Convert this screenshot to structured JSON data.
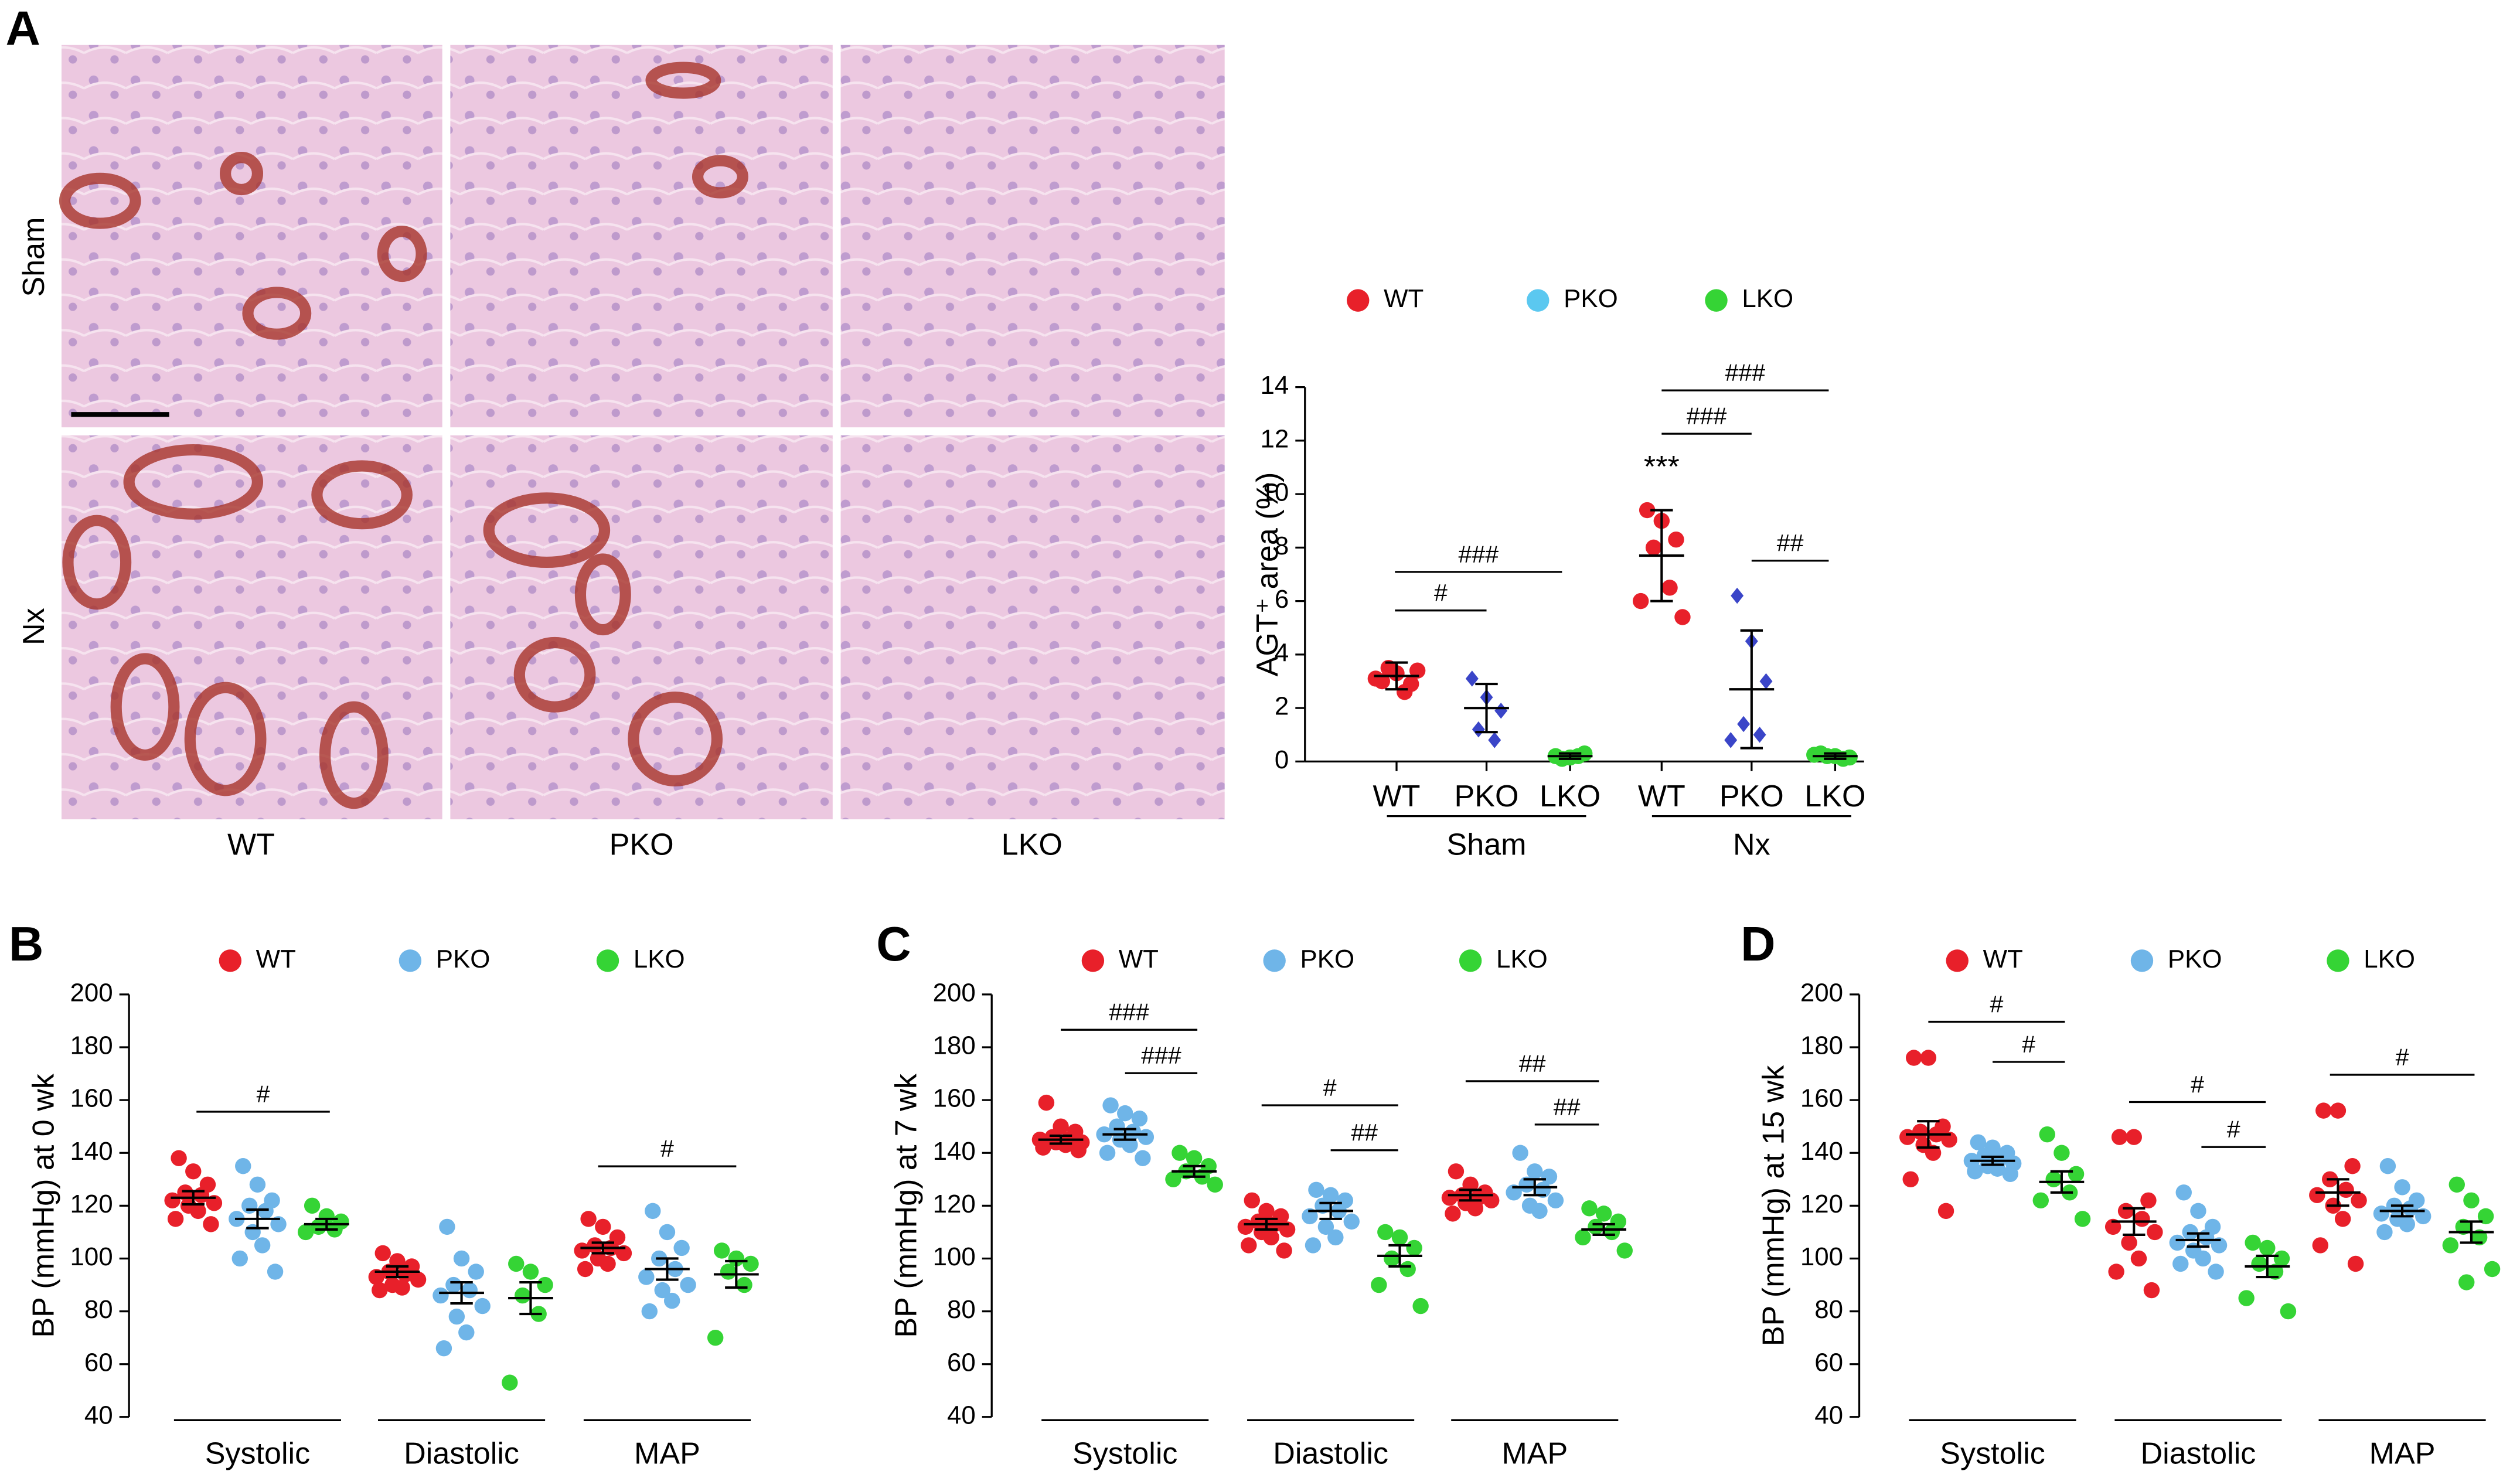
{
  "panel_labels": [
    "A",
    "B",
    "C",
    "D"
  ],
  "images": {
    "rows": [
      "Sham",
      "Nx"
    ],
    "columns": [
      "WT",
      "PKO",
      "LKO"
    ]
  },
  "chart_data": [
    {
      "type": "dotplot",
      "ylabel": "AGT⁺ area (%)",
      "groups": [
        "Sham",
        "Nx"
      ],
      "ylim": [
        0,
        14
      ],
      "yticks": [
        0,
        2,
        4,
        6,
        8,
        10,
        12,
        14
      ],
      "series": [
        {
          "name": "WT",
          "color": "#e8202a",
          "points": [
            [
              3.0,
              3.3,
              2.9,
              3.5,
              2.6,
              3.1,
              3.4
            ],
            [
              9.4,
              9.0,
              8.3,
              8.0,
              6.5,
              6.0,
              5.4
            ]
          ],
          "mean": [
            3.2,
            7.7
          ],
          "error": [
            0.5,
            1.7
          ]
        },
        {
          "name": "PKO",
          "color": "#5bc8f0",
          "marker_color": "#3a45c8",
          "marker": "diamond",
          "points": [
            [
              3.1,
              2.4,
              1.9,
              1.2,
              0.8
            ],
            [
              6.2,
              4.5,
              3.0,
              1.4,
              1.0,
              0.8
            ]
          ],
          "mean": [
            2.0,
            2.7
          ],
          "error": [
            0.9,
            2.2
          ]
        },
        {
          "name": "LKO",
          "color": "#35d435",
          "points": [
            [
              0.2,
              0.15,
              0.3,
              0.1,
              0.2
            ],
            [
              0.3,
              0.2,
              0.15,
              0.2,
              0.1,
              0.25
            ]
          ],
          "mean": [
            0.2,
            0.2
          ],
          "error": [
            0.1,
            0.1
          ]
        }
      ],
      "annotations": [
        "#",
        "###",
        "***",
        "###",
        "###",
        "##"
      ]
    },
    {
      "type": "dotplot",
      "ylabel": "BP (mmHg) at 0 wk",
      "groups": [
        "Systolic",
        "Diastolic",
        "MAP"
      ],
      "ylim": [
        40,
        200
      ],
      "yticks": [
        40,
        60,
        80,
        100,
        120,
        140,
        160,
        180,
        200
      ],
      "series": [
        {
          "name": "WT",
          "color": "#e8202a",
          "points": [
            [
              138,
              133,
              128,
              125,
              124,
              122,
              121,
              120,
              118,
              115,
              113
            ],
            [
              102,
              99,
              97,
              95,
              94,
              93,
              92,
              90,
              89,
              88
            ],
            [
              115,
              112,
              108,
              105,
              104,
              103,
              102,
              100,
              98,
              96
            ]
          ],
          "mean": [
            123,
            95,
            104
          ],
          "error": [
            2.5,
            2,
            2
          ]
        },
        {
          "name": "PKO",
          "color": "#6fb5e8",
          "points": [
            [
              135,
              128,
              122,
              120,
              118,
              115,
              113,
              110,
              105,
              100,
              95
            ],
            [
              112,
              100,
              95,
              90,
              88,
              86,
              82,
              78,
              72,
              66
            ],
            [
              118,
              110,
              104,
              100,
              96,
              93,
              90,
              88,
              84,
              80
            ]
          ],
          "mean": [
            115,
            87,
            96
          ],
          "error": [
            3.5,
            4,
            4
          ]
        },
        {
          "name": "LKO",
          "color": "#35d435",
          "points": [
            [
              120,
              116,
              114,
              112,
              111,
              110
            ],
            [
              98,
              95,
              90,
              86,
              79,
              53
            ],
            [
              103,
              100,
              98,
              95,
              90,
              70
            ]
          ],
          "mean": [
            113,
            85,
            94
          ],
          "error": [
            2,
            6,
            5
          ]
        }
      ],
      "annotations": [
        "#",
        "#"
      ]
    },
    {
      "type": "dotplot",
      "ylabel": "BP (mmHg) at 7 wk",
      "groups": [
        "Systolic",
        "Diastolic",
        "MAP"
      ],
      "ylim": [
        40,
        200
      ],
      "yticks": [
        40,
        60,
        80,
        100,
        120,
        140,
        160,
        180,
        200
      ],
      "series": [
        {
          "name": "WT",
          "color": "#e8202a",
          "points": [
            [
              159,
              150,
              148,
              146,
              145,
              145,
              144,
              144,
              143,
              142,
              141
            ],
            [
              122,
              118,
              116,
              114,
              113,
              112,
              111,
              110,
              108,
              105,
              103
            ],
            [
              133,
              128,
              125,
              124,
              123,
              123,
              122,
              121,
              119,
              117
            ]
          ],
          "mean": [
            145,
            113,
            124
          ],
          "error": [
            1.5,
            2,
            2
          ]
        },
        {
          "name": "PKO",
          "color": "#6fb5e8",
          "points": [
            [
              158,
              155,
              153,
              150,
              148,
              147,
              146,
              145,
              143,
              140,
              138
            ],
            [
              126,
              124,
              122,
              120,
              118,
              116,
              114,
              112,
              108,
              105
            ],
            [
              140,
              133,
              131,
              128,
              126,
              125,
              122,
              120,
              118
            ]
          ],
          "mean": [
            147,
            118,
            127
          ],
          "error": [
            2,
            3,
            3
          ]
        },
        {
          "name": "LKO",
          "color": "#35d435",
          "points": [
            [
              140,
              138,
              135,
              133,
              131,
              130,
              128
            ],
            [
              110,
              108,
              104,
              100,
              96,
              90,
              82
            ],
            [
              119,
              117,
              114,
              112,
              110,
              108,
              103
            ]
          ],
          "mean": [
            133,
            101,
            111
          ],
          "error": [
            2,
            4,
            2
          ]
        }
      ],
      "annotations": [
        "###",
        "###",
        "#",
        "##",
        "##",
        "##"
      ]
    },
    {
      "type": "dotplot",
      "ylabel": "BP (mmHg) at 15 wk",
      "groups": [
        "Systolic",
        "Diastolic",
        "MAP"
      ],
      "ylim": [
        40,
        200
      ],
      "yticks": [
        40,
        60,
        80,
        100,
        120,
        140,
        160,
        180,
        200
      ],
      "series": [
        {
          "name": "WT",
          "color": "#e8202a",
          "points": [
            [
              176,
              176,
              150,
              148,
              147,
              146,
              145,
              143,
              140,
              130,
              118
            ],
            [
              146,
              146,
              122,
              118,
              115,
              112,
              110,
              106,
              100,
              95,
              88
            ],
            [
              156,
              156,
              135,
              130,
              126,
              124,
              122,
              120,
              115,
              105,
              98
            ]
          ],
          "mean": [
            147,
            114,
            125
          ],
          "error": [
            5,
            5,
            5
          ]
        },
        {
          "name": "PKO",
          "color": "#6fb5e8",
          "points": [
            [
              144,
              142,
              140,
              139,
              138,
              137,
              136,
              135,
              134,
              133,
              132
            ],
            [
              125,
              118,
              112,
              110,
              108,
              106,
              105,
              103,
              100,
              98,
              95
            ],
            [
              135,
              127,
              122,
              120,
              119,
              117,
              116,
              115,
              113,
              110
            ]
          ],
          "mean": [
            137,
            107,
            118
          ],
          "error": [
            1.5,
            2.5,
            2
          ]
        },
        {
          "name": "LKO",
          "color": "#35d435",
          "points": [
            [
              147,
              140,
              132,
              130,
              125,
              122,
              115
            ],
            [
              106,
              104,
              100,
              98,
              95,
              85,
              80
            ],
            [
              128,
              122,
              116,
              112,
              108,
              105,
              96,
              91
            ]
          ],
          "mean": [
            129,
            97,
            110
          ],
          "error": [
            4,
            4,
            4
          ]
        }
      ],
      "annotations": [
        "#",
        "#",
        "#",
        "#",
        "#"
      ]
    }
  ]
}
